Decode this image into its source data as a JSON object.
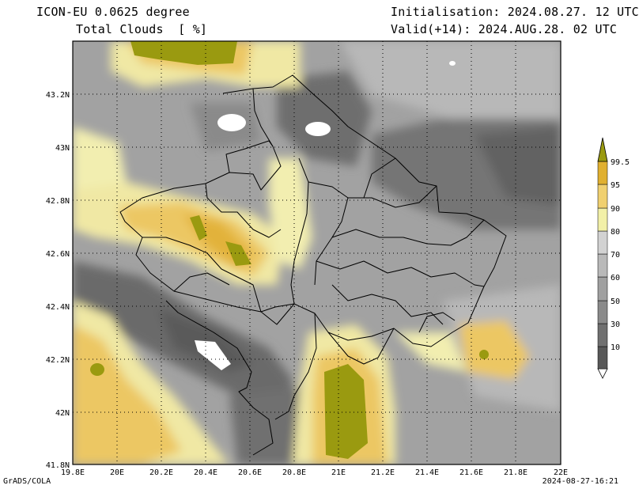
{
  "header": {
    "model": "ICON-EU 0.0625 degree",
    "field": "Total Clouds  [ %]",
    "initialisation": "Initialisation: 2024.08.27. 12 UTC",
    "valid": "Valid(+14): 2024.AUG.28. 02 UTC"
  },
  "map": {
    "lon_range": [
      19.8,
      22.0
    ],
    "lat_range": [
      41.8,
      43.4
    ],
    "lon_ticks": [
      "19.8E",
      "20E",
      "20.2E",
      "20.4E",
      "20.6E",
      "20.8E",
      "21E",
      "21.2E",
      "21.4E",
      "21.6E",
      "21.8E",
      "22E"
    ],
    "lat_ticks": [
      "41.8N",
      "42N",
      "42.2N",
      "42.4N",
      "42.6N",
      "42.8N",
      "43N",
      "43.2N"
    ],
    "grid": "dotted"
  },
  "colorbar": {
    "levels": [
      "10",
      "30",
      "50",
      "60",
      "70",
      "80",
      "90",
      "95",
      "99.5"
    ],
    "colors": [
      "#585858",
      "#707070",
      "#8a8a8a",
      "#a0a0a0",
      "#b9b9b9",
      "#d2d2d2",
      "#f2f0a8",
      "#f0d070",
      "#e0b030",
      "#9a9a10"
    ]
  },
  "footer": {
    "credit": "GrADS/COLA",
    "timestamp": "2024-08-27-16:21"
  }
}
